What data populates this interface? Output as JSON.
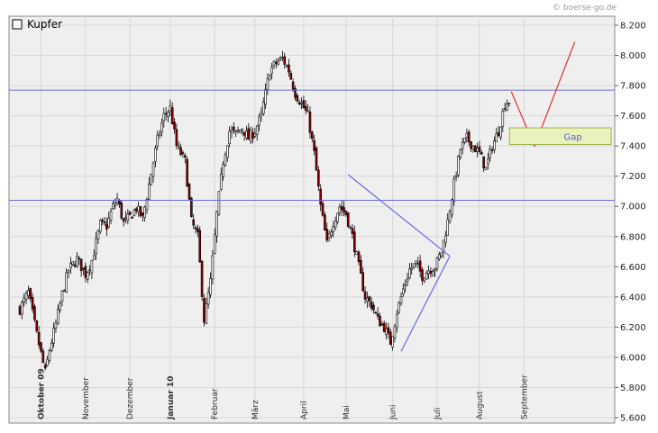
{
  "copyright": "© boerse-go.de",
  "chart_data": {
    "type": "candlestick",
    "title": "Kupfer",
    "legend": {
      "position": "top-left",
      "entries": [
        "Kupfer"
      ]
    },
    "ylim": [
      5600,
      8300
    ],
    "y_ticks": [
      5600,
      5800,
      6000,
      6200,
      6400,
      6600,
      6800,
      7000,
      7200,
      7400,
      7600,
      7800,
      8000,
      8200
    ],
    "y_tick_labels": [
      "5.600",
      "5.800",
      "6.000",
      "6.200",
      "6.400",
      "6.600",
      "6.800",
      "7.000",
      "7.200",
      "7.400",
      "7.600",
      "7.800",
      "8.000",
      "8.200"
    ],
    "grid": true,
    "months": [
      {
        "label": "Oktober 09",
        "index": 10,
        "bold": true
      },
      {
        "label": "November",
        "index": 31,
        "bold": false
      },
      {
        "label": "Dezember",
        "index": 52,
        "bold": false
      },
      {
        "label": "Januar 10",
        "index": 71,
        "bold": true
      },
      {
        "label": "Februar",
        "index": 92,
        "bold": false
      },
      {
        "label": "März",
        "index": 111,
        "bold": false
      },
      {
        "label": "April",
        "index": 134,
        "bold": false
      },
      {
        "label": "Mai",
        "index": 154,
        "bold": false
      },
      {
        "label": "Juni",
        "index": 176,
        "bold": false
      },
      {
        "label": "Juli",
        "index": 197,
        "bold": false
      },
      {
        "label": "August",
        "index": 217,
        "bold": false
      },
      {
        "label": "September",
        "index": 238,
        "bold": false
      }
    ],
    "close_path": [
      [
        0,
        6320
      ],
      [
        4,
        6430
      ],
      [
        8,
        6150
      ],
      [
        12,
        5900
      ],
      [
        14,
        6050
      ],
      [
        17,
        6220
      ],
      [
        20,
        6420
      ],
      [
        23,
        6580
      ],
      [
        27,
        6650
      ],
      [
        31,
        6550
      ],
      [
        34,
        6640
      ],
      [
        38,
        6880
      ],
      [
        41,
        6870
      ],
      [
        44,
        7000
      ],
      [
        46,
        7050
      ],
      [
        49,
        6890
      ],
      [
        52,
        6930
      ],
      [
        55,
        6990
      ],
      [
        58,
        6920
      ],
      [
        62,
        7220
      ],
      [
        65,
        7440
      ],
      [
        68,
        7600
      ],
      [
        71,
        7650
      ],
      [
        74,
        7400
      ],
      [
        78,
        7300
      ],
      [
        81,
        6900
      ],
      [
        84,
        6800
      ],
      [
        87,
        6250
      ],
      [
        90,
        6500
      ],
      [
        93,
        6950
      ],
      [
        96,
        7300
      ],
      [
        99,
        7500
      ],
      [
        102,
        7480
      ],
      [
        105,
        7520
      ],
      [
        108,
        7450
      ],
      [
        111,
        7500
      ],
      [
        114,
        7600
      ],
      [
        118,
        7900
      ],
      [
        121,
        7950
      ],
      [
        124,
        7980
      ],
      [
        127,
        7900
      ],
      [
        130,
        7750
      ],
      [
        133,
        7680
      ],
      [
        136,
        7600
      ],
      [
        139,
        7350
      ],
      [
        142,
        7000
      ],
      [
        145,
        6750
      ],
      [
        148,
        6900
      ],
      [
        151,
        7000
      ],
      [
        154,
        6950
      ],
      [
        157,
        6800
      ],
      [
        160,
        6600
      ],
      [
        163,
        6400
      ],
      [
        166,
        6350
      ],
      [
        169,
        6250
      ],
      [
        172,
        6200
      ],
      [
        175,
        6100
      ],
      [
        178,
        6300
      ],
      [
        181,
        6450
      ],
      [
        184,
        6580
      ],
      [
        187,
        6620
      ],
      [
        190,
        6540
      ],
      [
        193,
        6580
      ],
      [
        196,
        6600
      ],
      [
        199,
        6700
      ],
      [
        202,
        6900
      ],
      [
        205,
        7150
      ],
      [
        208,
        7380
      ],
      [
        211,
        7450
      ],
      [
        214,
        7400
      ],
      [
        217,
        7350
      ],
      [
        220,
        7250
      ],
      [
        223,
        7400
      ],
      [
        226,
        7500
      ],
      [
        229,
        7680
      ],
      [
        231,
        7700
      ]
    ],
    "horizontal_lines": [
      7770,
      7040
    ],
    "annotations": [
      {
        "type": "trendline",
        "color": "#6a6ae0",
        "points": [
          [
            155,
            7210
          ],
          [
            203,
            6670
          ]
        ]
      },
      {
        "type": "trendline",
        "color": "#6a6ae0",
        "points": [
          [
            180,
            6040
          ],
          [
            203,
            6670
          ]
        ]
      },
      {
        "type": "projection",
        "color": "#e03030",
        "points": [
          [
            232,
            7760
          ],
          [
            243,
            7400
          ],
          [
            262,
            8090
          ]
        ]
      },
      {
        "type": "zone",
        "label": "Gap",
        "y_range": [
          7410,
          7520
        ],
        "x_start": 232,
        "color": "#e9f2bd"
      }
    ]
  }
}
